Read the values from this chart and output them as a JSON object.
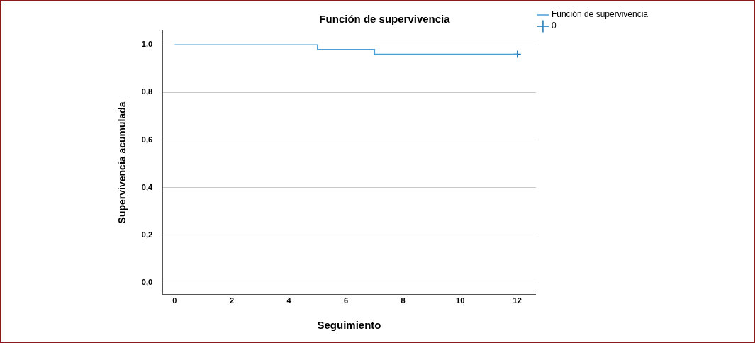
{
  "chart_data": {
    "type": "step",
    "title": "Función de supervivencia",
    "xlabel": "Seguimiento",
    "ylabel": "Supervivencia acumulada",
    "series": [
      {
        "name": "Función de supervivencia",
        "type": "step",
        "color": "#4a9fd8",
        "x": [
          0,
          5,
          7,
          12
        ],
        "values": [
          1,
          0.98,
          0.96,
          0.96
        ]
      },
      {
        "name": "0",
        "type": "scatter",
        "color": "#1f77b4",
        "marker": "cross",
        "x": [
          12
        ],
        "values": [
          0.96
        ]
      }
    ],
    "xlim": [
      -0.43,
      12.65
    ],
    "xticks": [
      0,
      2,
      4,
      6,
      8,
      10,
      12
    ],
    "ylim": [
      -0.05,
      1.06
    ],
    "yticks": [
      {
        "value": 0,
        "label": "0,0"
      },
      {
        "value": 0.2,
        "label": "0,2"
      },
      {
        "value": 0.4,
        "label": "0,4"
      },
      {
        "value": 0.6,
        "label": "0,6"
      },
      {
        "value": 0.8,
        "label": "0,8"
      },
      {
        "value": 1,
        "label": "1,0"
      }
    ],
    "grid": "y",
    "legend": "top right"
  }
}
